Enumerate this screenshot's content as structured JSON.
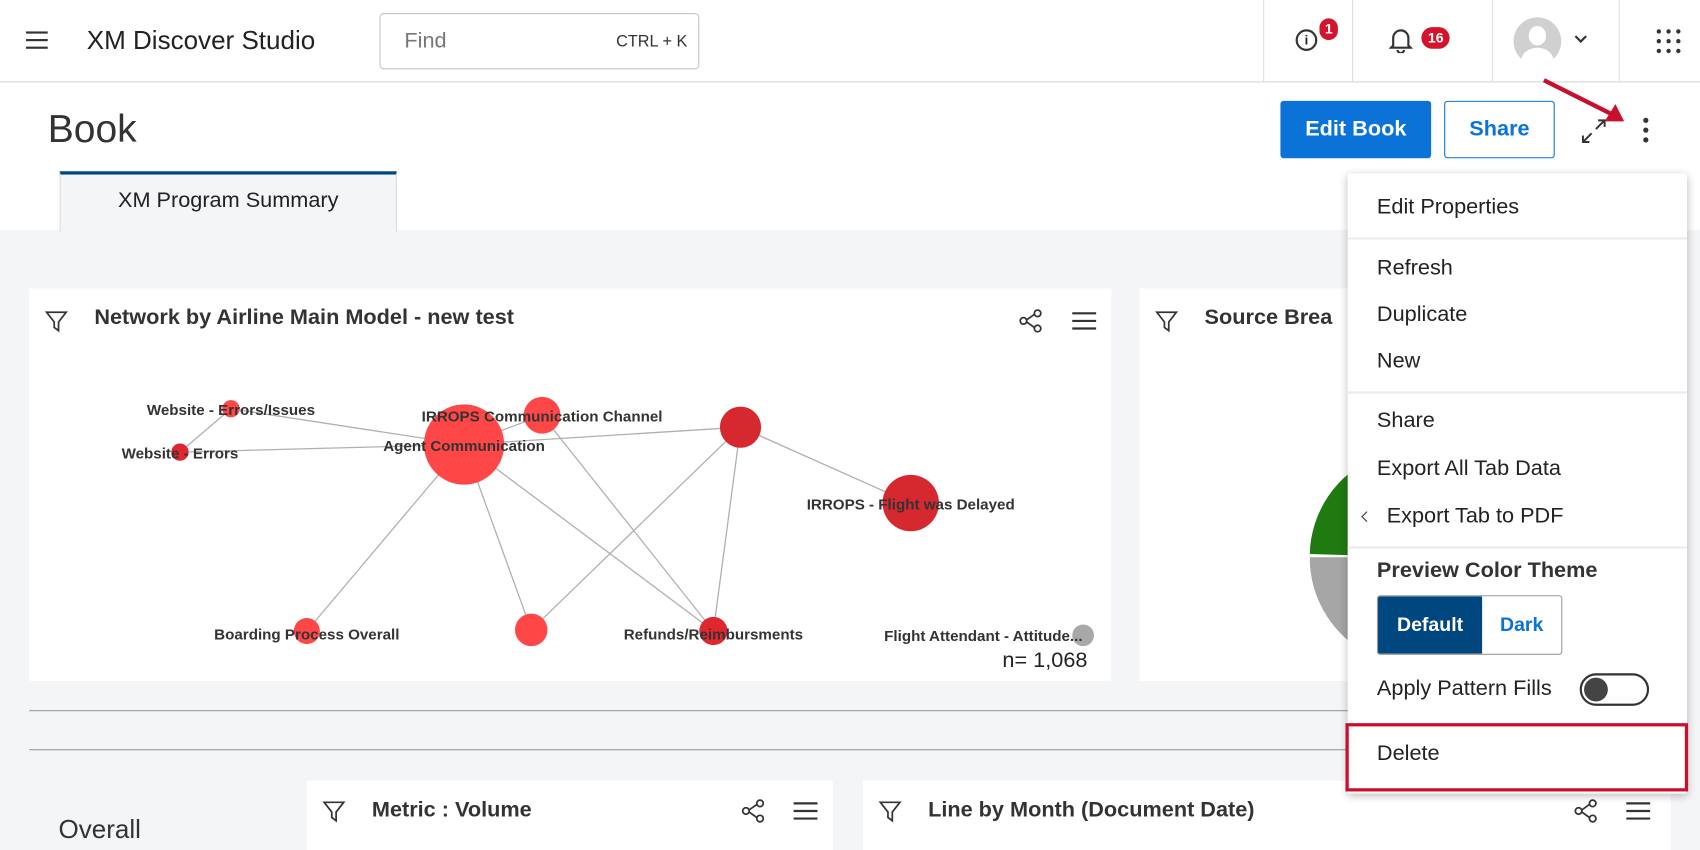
{
  "header": {
    "app_title": "XM Discover Studio",
    "search_placeholder": "Find",
    "search_shortcut": "CTRL + K",
    "info_badge": "1",
    "notifications_badge": "16"
  },
  "page": {
    "title": "Book",
    "edit_button": "Edit Book",
    "share_button": "Share"
  },
  "tabs": [
    {
      "label": "XM Program Summary",
      "active": true
    }
  ],
  "widgets": {
    "network": {
      "title": "Network by Airline Main Model - new test",
      "count": "n= 1,068",
      "nodes": [
        {
          "id": "agent",
          "label": "Agent Communication",
          "color": "#ff4747"
        },
        {
          "id": "channel",
          "label": "IRROPS Communication Channel",
          "color": "#ff4747"
        },
        {
          "id": "n3",
          "label": "",
          "color": "#d6282f"
        },
        {
          "id": "delayed",
          "label": "IRROPS - Flight was Delayed",
          "color": "#d6282f"
        },
        {
          "id": "webissues",
          "label": "Website - Errors/Issues",
          "color": "#ff4747"
        },
        {
          "id": "weberrors",
          "label": "Website - Errors",
          "color": "#e0262f"
        },
        {
          "id": "boarding",
          "label": "Boarding Process Overall",
          "color": "#ff4747"
        },
        {
          "id": "n8",
          "label": "",
          "color": "#ff4747"
        },
        {
          "id": "refunds",
          "label": "Refunds/Reimbursments",
          "color": "#e0262f"
        },
        {
          "id": "attendant",
          "label": "Flight Attendant - Attitude...",
          "color": "#a8a8a8"
        }
      ],
      "edges": [
        [
          "agent",
          "webissues"
        ],
        [
          "agent",
          "weberrors"
        ],
        [
          "weberrors",
          "webissues"
        ],
        [
          "agent",
          "n3"
        ],
        [
          "agent",
          "channel"
        ],
        [
          "agent",
          "boarding"
        ],
        [
          "agent",
          "n8"
        ],
        [
          "agent",
          "refunds"
        ],
        [
          "channel",
          "refunds"
        ],
        [
          "n3",
          "delayed"
        ],
        [
          "n3",
          "n8"
        ],
        [
          "n3",
          "refunds"
        ]
      ]
    },
    "source": {
      "title": "Source Brea",
      "pie_colors": [
        "#1f7a0f",
        "#a6a6a6"
      ]
    },
    "section_label": "Overall",
    "metric": {
      "title": "Metric : Volume"
    },
    "line": {
      "title": "Line by Month (Document Date)"
    }
  },
  "menu": {
    "items": [
      "Edit Properties",
      "Refresh",
      "Duplicate",
      "New",
      "Share",
      "Export All Tab Data",
      "Export Tab to PDF"
    ],
    "theme_heading": "Preview Color Theme",
    "theme_options": [
      "Default",
      "Dark"
    ],
    "theme_selected": "Default",
    "pattern_fills_label": "Apply Pattern Fills",
    "pattern_fills_on": false,
    "delete_label": "Delete"
  },
  "colors": {
    "primary": "#0b72d8",
    "theme_selected": "#00467f",
    "highlight": "#c8102e"
  }
}
